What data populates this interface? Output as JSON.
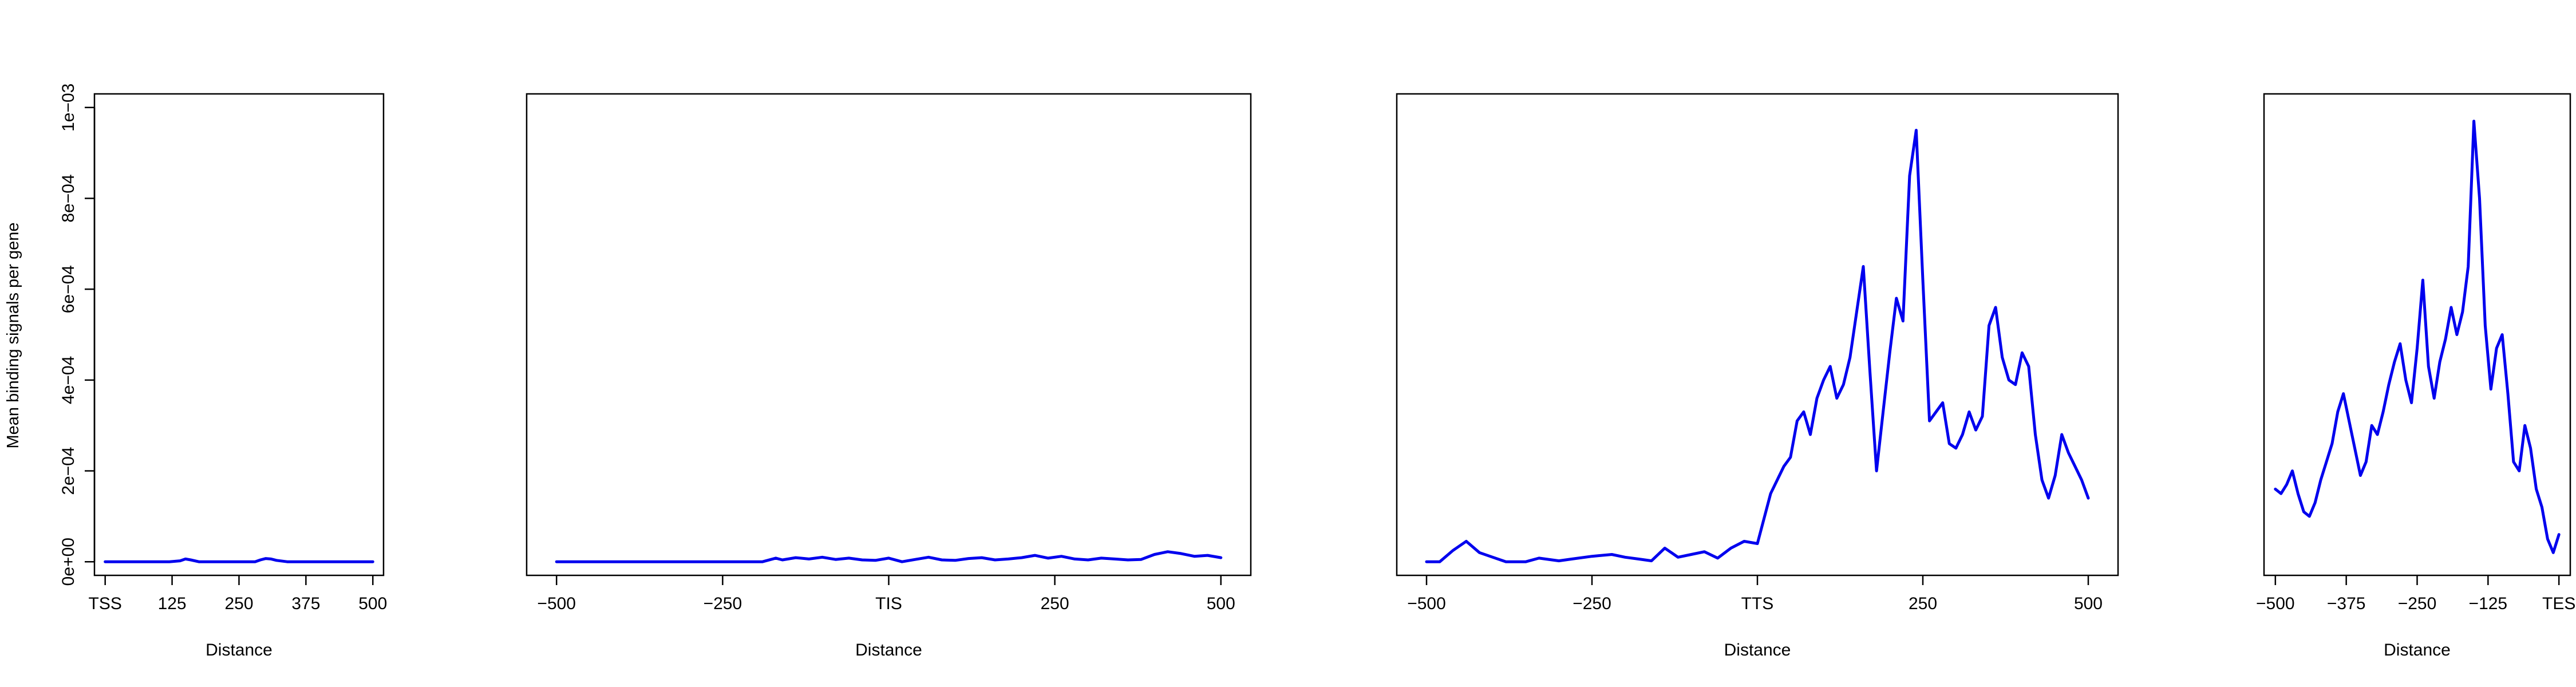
{
  "y_axis_label": "Mean binding signals per gene",
  "line_color": "#0000ee",
  "chart_data": [
    {
      "type": "line",
      "title": "",
      "xlabel": "Distance",
      "xlim": [
        -20,
        520
      ],
      "ylim": [
        -3e-05,
        0.00103
      ],
      "x_ticks": [
        {
          "value": 0,
          "label": "TSS"
        },
        {
          "value": 125,
          "label": "125"
        },
        {
          "value": 250,
          "label": "250"
        },
        {
          "value": 375,
          "label": "375"
        },
        {
          "value": 500,
          "label": "500"
        }
      ],
      "y_ticks": [
        {
          "value": 0,
          "label": "0e+00"
        },
        {
          "value": 0.0002,
          "label": "2e−04"
        },
        {
          "value": 0.0004,
          "label": "4e−04"
        },
        {
          "value": 0.0006,
          "label": "6e−04"
        },
        {
          "value": 0.0008,
          "label": "8e−04"
        },
        {
          "value": 0.001,
          "label": "1e−03"
        }
      ],
      "series": [
        {
          "x": [
            0,
            120,
            140,
            150,
            160,
            175,
            280,
            290,
            300,
            310,
            320,
            340,
            500
          ],
          "y": [
            0.0,
            0.0,
            2e-06,
            6e-06,
            4e-06,
            0.0,
            0.0,
            4e-06,
            7e-06,
            6e-06,
            3e-06,
            0.0,
            0.0
          ]
        }
      ]
    },
    {
      "type": "line",
      "title": "",
      "xlabel": "Distance",
      "xlim": [
        -545,
        545
      ],
      "ylim": [
        -3e-05,
        0.00103
      ],
      "x_ticks": [
        {
          "value": -500,
          "label": "−500"
        },
        {
          "value": -250,
          "label": "−250"
        },
        {
          "value": 0,
          "label": "TIS"
        },
        {
          "value": 250,
          "label": "250"
        },
        {
          "value": 500,
          "label": "500"
        }
      ],
      "series": [
        {
          "x": [
            -500,
            -190,
            -170,
            -160,
            -140,
            -120,
            -100,
            -80,
            -60,
            -40,
            -20,
            0,
            20,
            40,
            60,
            80,
            100,
            120,
            140,
            160,
            180,
            200,
            220,
            240,
            260,
            280,
            300,
            320,
            340,
            360,
            380,
            400,
            420,
            440,
            460,
            480,
            500
          ],
          "y": [
            0.0,
            0.0,
            8e-06,
            4e-06,
            9e-06,
            6e-06,
            1e-05,
            5e-06,
            8e-06,
            4e-06,
            3e-06,
            8e-06,
            0.0,
            5e-06,
            1e-05,
            4e-06,
            3e-06,
            7e-06,
            9e-06,
            4e-06,
            6e-06,
            9e-06,
            1.4e-05,
            8e-06,
            1.2e-05,
            6e-06,
            4e-06,
            8e-06,
            6e-06,
            4e-06,
            5e-06,
            1.6e-05,
            2.2e-05,
            1.8e-05,
            1.2e-05,
            1.4e-05,
            9e-06
          ]
        }
      ]
    },
    {
      "type": "line",
      "title": "",
      "xlabel": "Distance",
      "xlim": [
        -545,
        545
      ],
      "ylim": [
        -3e-05,
        0.00103
      ],
      "x_ticks": [
        {
          "value": -500,
          "label": "−500"
        },
        {
          "value": -250,
          "label": "−250"
        },
        {
          "value": 0,
          "label": "TTS"
        },
        {
          "value": 250,
          "label": "250"
        },
        {
          "value": 500,
          "label": "500"
        }
      ],
      "series": [
        {
          "x": [
            -500,
            -480,
            -460,
            -440,
            -420,
            -400,
            -380,
            -350,
            -330,
            -300,
            -280,
            -250,
            -220,
            -200,
            -180,
            -160,
            -140,
            -120,
            -100,
            -80,
            -60,
            -40,
            -20,
            0,
            20,
            40,
            50,
            60,
            70,
            80,
            90,
            100,
            110,
            120,
            130,
            140,
            150,
            160,
            170,
            180,
            190,
            200,
            210,
            220,
            230,
            240,
            250,
            260,
            270,
            280,
            290,
            300,
            310,
            320,
            330,
            340,
            350,
            360,
            370,
            380,
            390,
            400,
            410,
            420,
            430,
            440,
            450,
            460,
            470,
            480,
            490,
            500
          ],
          "y": [
            0.0,
            0.0,
            2.5e-05,
            4.5e-05,
            2e-05,
            1e-05,
            0.0,
            0.0,
            8e-06,
            2e-06,
            6e-06,
            1.2e-05,
            1.6e-05,
            1e-05,
            6e-06,
            2e-06,
            3e-05,
            1e-05,
            1.6e-05,
            2.2e-05,
            8e-06,
            3e-05,
            4.5e-05,
            4e-05,
            0.00015,
            0.00021,
            0.00023,
            0.00031,
            0.00033,
            0.00028,
            0.00036,
            0.0004,
            0.00043,
            0.00036,
            0.00039,
            0.00045,
            0.00055,
            0.00065,
            0.00042,
            0.0002,
            0.00033,
            0.00046,
            0.00058,
            0.00053,
            0.00085,
            0.00095,
            0.00062,
            0.00031,
            0.00033,
            0.00035,
            0.00026,
            0.00025,
            0.00028,
            0.00033,
            0.00029,
            0.00032,
            0.00052,
            0.00056,
            0.00045,
            0.0004,
            0.00039,
            0.00046,
            0.00043,
            0.00028,
            0.00018,
            0.00014,
            0.00019,
            0.00028,
            0.00024,
            0.00021,
            0.00018,
            0.00014
          ]
        }
      ]
    },
    {
      "type": "line",
      "title": "",
      "xlabel": "Distance",
      "xlim": [
        -520,
        20
      ],
      "ylim": [
        -3e-05,
        0.00103
      ],
      "x_ticks": [
        {
          "value": -500,
          "label": "−500"
        },
        {
          "value": -375,
          "label": "−375"
        },
        {
          "value": -250,
          "label": "−250"
        },
        {
          "value": -125,
          "label": "−125"
        },
        {
          "value": 0,
          "label": "TES"
        }
      ],
      "series": [
        {
          "x": [
            -500,
            -490,
            -480,
            -470,
            -460,
            -450,
            -440,
            -430,
            -420,
            -410,
            -400,
            -390,
            -380,
            -370,
            -360,
            -350,
            -340,
            -330,
            -320,
            -310,
            -300,
            -290,
            -280,
            -270,
            -260,
            -250,
            -240,
            -230,
            -220,
            -210,
            -200,
            -190,
            -180,
            -170,
            -160,
            -150,
            -140,
            -130,
            -120,
            -110,
            -100,
            -90,
            -80,
            -70,
            -60,
            -50,
            -40,
            -30,
            -20,
            -10,
            0
          ],
          "y": [
            0.00016,
            0.00015,
            0.00017,
            0.0002,
            0.00015,
            0.00011,
            0.0001,
            0.00013,
            0.00018,
            0.00022,
            0.00026,
            0.00033,
            0.00037,
            0.00031,
            0.00025,
            0.00019,
            0.00022,
            0.0003,
            0.00028,
            0.00033,
            0.00039,
            0.00044,
            0.00048,
            0.0004,
            0.00035,
            0.00047,
            0.00062,
            0.00043,
            0.00036,
            0.00044,
            0.00049,
            0.00056,
            0.0005,
            0.00055,
            0.00065,
            0.00097,
            0.0008,
            0.00052,
            0.00038,
            0.00047,
            0.0005,
            0.00037,
            0.00022,
            0.0002,
            0.0003,
            0.00025,
            0.00016,
            0.00012,
            5e-05,
            2e-05,
            6e-05
          ]
        }
      ]
    }
  ]
}
